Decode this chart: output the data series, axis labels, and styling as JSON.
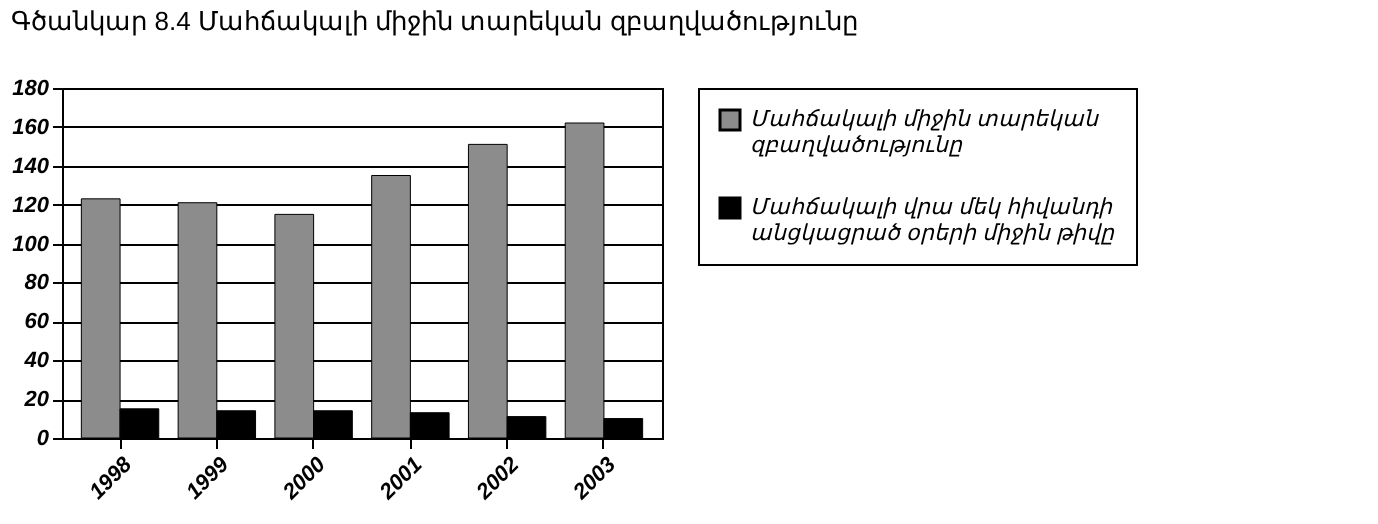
{
  "chart_data": {
    "type": "bar",
    "title": "Գծանկար 8.4 Մահճակալի միջին տարեկան զբաղվածությունը",
    "categories": [
      "1998",
      "1999",
      "2000",
      "2001",
      "2002",
      "2003"
    ],
    "series": [
      {
        "name": "Մահճակալի միջին տարեկան զբաղվածությունը",
        "color": "#8c8c8c",
        "values": [
          123,
          121,
          115,
          135,
          151,
          162
        ]
      },
      {
        "name": "Մահճակալի վրա մեկ հիվանդի անցկացրած օրերի միջին թիվը",
        "color": "#000000",
        "values": [
          15,
          14,
          14,
          13,
          11,
          10
        ]
      }
    ],
    "ylim": [
      0,
      180
    ],
    "yticks": [
      0,
      20,
      40,
      60,
      80,
      100,
      120,
      140,
      160,
      180
    ],
    "grid": "y",
    "legend": "right"
  }
}
